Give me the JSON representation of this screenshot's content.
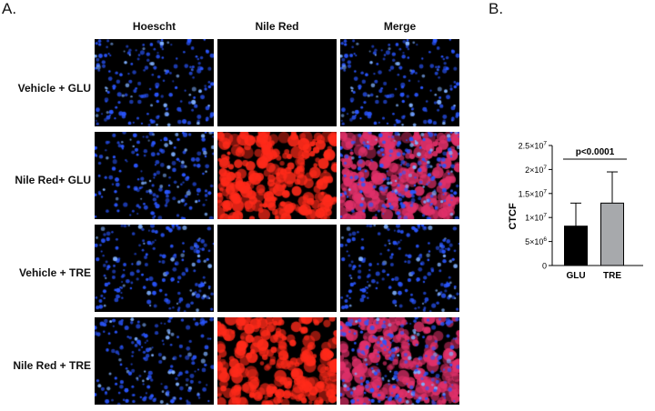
{
  "panel_a": {
    "letter": "A."
  },
  "panel_b": {
    "letter": "B."
  },
  "columns": [
    {
      "label": "Hoescht",
      "channel": "hoechst"
    },
    {
      "label": "Nile Red",
      "channel": "nilered"
    },
    {
      "label": "Merge",
      "channel": "merge"
    }
  ],
  "rows": [
    {
      "label": "Vehicle + GLU",
      "nile_red_signal": false
    },
    {
      "label": "Nile Red+ GLU",
      "nile_red_signal": true
    },
    {
      "label": "Vehicle + TRE",
      "nile_red_signal": false
    },
    {
      "label": "Nile Red + TRE",
      "nile_red_signal": true
    }
  ],
  "colors": {
    "nucleus_blue": "#2a56ff",
    "nile_red": "#ff2a1a",
    "merge_magenta": "#e0306a",
    "bar_glu": "#000000",
    "bar_tre": "#a7a9ac"
  },
  "chart_data": {
    "type": "bar",
    "categories": [
      "GLU",
      "TRE"
    ],
    "values": [
      8200000,
      13000000
    ],
    "errors": [
      4800000,
      6500000
    ],
    "ylabel": "CTCF",
    "ylim": [
      0,
      25000000
    ],
    "yticks": [
      {
        "value": 0,
        "label": "0"
      },
      {
        "value": 5000000,
        "mant": "5",
        "sep": "×10",
        "exp": "6"
      },
      {
        "value": 10000000,
        "mant": "1",
        "sep": "×10",
        "exp": "7"
      },
      {
        "value": 15000000,
        "mant": "1.5",
        "sep": "×10",
        "exp": "7"
      },
      {
        "value": 20000000,
        "mant": "2",
        "sep": "×10",
        "exp": "7"
      },
      {
        "value": 25000000,
        "mant": "2.5",
        "sep": "×10",
        "exp": "7"
      }
    ],
    "annotation": "p<0.0001",
    "grid": false
  }
}
